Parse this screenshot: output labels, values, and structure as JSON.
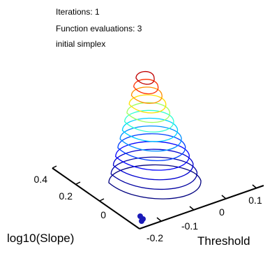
{
  "status": {
    "iterations": "Iterations: 1",
    "evaluations": "Function evaluations: 3",
    "phase": "initial simplex"
  },
  "chart_data": {
    "type": "contour3d",
    "xlabel": "Threshold",
    "ylabel": "log10(Slope)",
    "xticks": [
      "-0.2",
      "-0.1",
      "0",
      "0.1"
    ],
    "yticks": [
      "0",
      "0.2",
      "0.4"
    ],
    "xlim": [
      -0.22,
      0.13
    ],
    "ylim": [
      -0.05,
      0.45
    ],
    "contour_levels": 13,
    "contour_colors": [
      "#00007f",
      "#0000a0",
      "#0000d0",
      "#0000ff",
      "#0040ff",
      "#0090ff",
      "#00d0ff",
      "#30ffd0",
      "#a0ff60",
      "#ffe000",
      "#ff9000",
      "#ff3000",
      "#c00000"
    ],
    "simplex_marker_color": "#1a1ab8",
    "simplex_points": 3
  }
}
